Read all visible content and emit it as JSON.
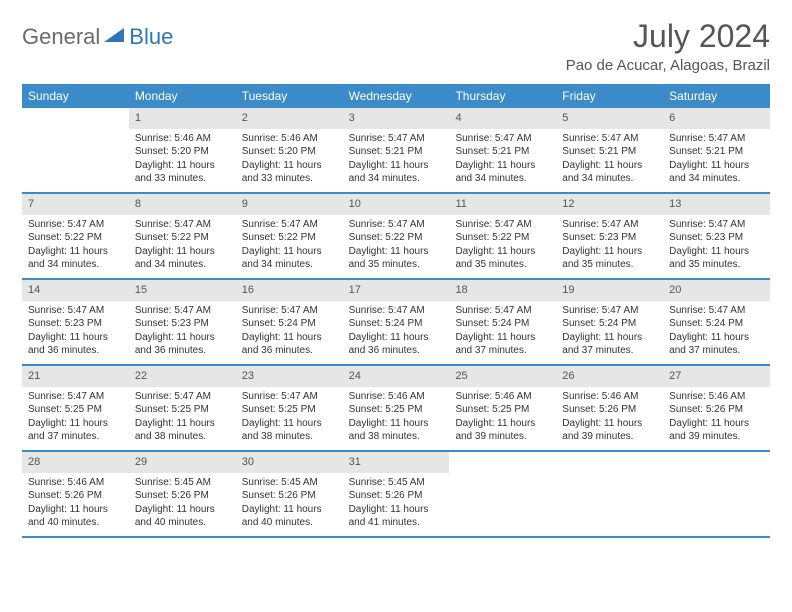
{
  "logo": {
    "text1": "General",
    "text2": "Blue"
  },
  "title": "July 2024",
  "location": "Pao de Acucar, Alagoas, Brazil",
  "colors": {
    "header_bg": "#3b8bc8",
    "header_text": "#ffffff",
    "daynum_bg": "#e6e6e6",
    "text": "#333333",
    "title_color": "#555555",
    "logo_general": "#6b6b6b",
    "logo_blue": "#2d77b5"
  },
  "days_of_week": [
    "Sunday",
    "Monday",
    "Tuesday",
    "Wednesday",
    "Thursday",
    "Friday",
    "Saturday"
  ],
  "weeks": [
    [
      null,
      {
        "n": "1",
        "sr": "Sunrise: 5:46 AM",
        "ss": "Sunset: 5:20 PM",
        "dl": "Daylight: 11 hours and 33 minutes."
      },
      {
        "n": "2",
        "sr": "Sunrise: 5:46 AM",
        "ss": "Sunset: 5:20 PM",
        "dl": "Daylight: 11 hours and 33 minutes."
      },
      {
        "n": "3",
        "sr": "Sunrise: 5:47 AM",
        "ss": "Sunset: 5:21 PM",
        "dl": "Daylight: 11 hours and 34 minutes."
      },
      {
        "n": "4",
        "sr": "Sunrise: 5:47 AM",
        "ss": "Sunset: 5:21 PM",
        "dl": "Daylight: 11 hours and 34 minutes."
      },
      {
        "n": "5",
        "sr": "Sunrise: 5:47 AM",
        "ss": "Sunset: 5:21 PM",
        "dl": "Daylight: 11 hours and 34 minutes."
      },
      {
        "n": "6",
        "sr": "Sunrise: 5:47 AM",
        "ss": "Sunset: 5:21 PM",
        "dl": "Daylight: 11 hours and 34 minutes."
      }
    ],
    [
      {
        "n": "7",
        "sr": "Sunrise: 5:47 AM",
        "ss": "Sunset: 5:22 PM",
        "dl": "Daylight: 11 hours and 34 minutes."
      },
      {
        "n": "8",
        "sr": "Sunrise: 5:47 AM",
        "ss": "Sunset: 5:22 PM",
        "dl": "Daylight: 11 hours and 34 minutes."
      },
      {
        "n": "9",
        "sr": "Sunrise: 5:47 AM",
        "ss": "Sunset: 5:22 PM",
        "dl": "Daylight: 11 hours and 34 minutes."
      },
      {
        "n": "10",
        "sr": "Sunrise: 5:47 AM",
        "ss": "Sunset: 5:22 PM",
        "dl": "Daylight: 11 hours and 35 minutes."
      },
      {
        "n": "11",
        "sr": "Sunrise: 5:47 AM",
        "ss": "Sunset: 5:22 PM",
        "dl": "Daylight: 11 hours and 35 minutes."
      },
      {
        "n": "12",
        "sr": "Sunrise: 5:47 AM",
        "ss": "Sunset: 5:23 PM",
        "dl": "Daylight: 11 hours and 35 minutes."
      },
      {
        "n": "13",
        "sr": "Sunrise: 5:47 AM",
        "ss": "Sunset: 5:23 PM",
        "dl": "Daylight: 11 hours and 35 minutes."
      }
    ],
    [
      {
        "n": "14",
        "sr": "Sunrise: 5:47 AM",
        "ss": "Sunset: 5:23 PM",
        "dl": "Daylight: 11 hours and 36 minutes."
      },
      {
        "n": "15",
        "sr": "Sunrise: 5:47 AM",
        "ss": "Sunset: 5:23 PM",
        "dl": "Daylight: 11 hours and 36 minutes."
      },
      {
        "n": "16",
        "sr": "Sunrise: 5:47 AM",
        "ss": "Sunset: 5:24 PM",
        "dl": "Daylight: 11 hours and 36 minutes."
      },
      {
        "n": "17",
        "sr": "Sunrise: 5:47 AM",
        "ss": "Sunset: 5:24 PM",
        "dl": "Daylight: 11 hours and 36 minutes."
      },
      {
        "n": "18",
        "sr": "Sunrise: 5:47 AM",
        "ss": "Sunset: 5:24 PM",
        "dl": "Daylight: 11 hours and 37 minutes."
      },
      {
        "n": "19",
        "sr": "Sunrise: 5:47 AM",
        "ss": "Sunset: 5:24 PM",
        "dl": "Daylight: 11 hours and 37 minutes."
      },
      {
        "n": "20",
        "sr": "Sunrise: 5:47 AM",
        "ss": "Sunset: 5:24 PM",
        "dl": "Daylight: 11 hours and 37 minutes."
      }
    ],
    [
      {
        "n": "21",
        "sr": "Sunrise: 5:47 AM",
        "ss": "Sunset: 5:25 PM",
        "dl": "Daylight: 11 hours and 37 minutes."
      },
      {
        "n": "22",
        "sr": "Sunrise: 5:47 AM",
        "ss": "Sunset: 5:25 PM",
        "dl": "Daylight: 11 hours and 38 minutes."
      },
      {
        "n": "23",
        "sr": "Sunrise: 5:47 AM",
        "ss": "Sunset: 5:25 PM",
        "dl": "Daylight: 11 hours and 38 minutes."
      },
      {
        "n": "24",
        "sr": "Sunrise: 5:46 AM",
        "ss": "Sunset: 5:25 PM",
        "dl": "Daylight: 11 hours and 38 minutes."
      },
      {
        "n": "25",
        "sr": "Sunrise: 5:46 AM",
        "ss": "Sunset: 5:25 PM",
        "dl": "Daylight: 11 hours and 39 minutes."
      },
      {
        "n": "26",
        "sr": "Sunrise: 5:46 AM",
        "ss": "Sunset: 5:26 PM",
        "dl": "Daylight: 11 hours and 39 minutes."
      },
      {
        "n": "27",
        "sr": "Sunrise: 5:46 AM",
        "ss": "Sunset: 5:26 PM",
        "dl": "Daylight: 11 hours and 39 minutes."
      }
    ],
    [
      {
        "n": "28",
        "sr": "Sunrise: 5:46 AM",
        "ss": "Sunset: 5:26 PM",
        "dl": "Daylight: 11 hours and 40 minutes."
      },
      {
        "n": "29",
        "sr": "Sunrise: 5:45 AM",
        "ss": "Sunset: 5:26 PM",
        "dl": "Daylight: 11 hours and 40 minutes."
      },
      {
        "n": "30",
        "sr": "Sunrise: 5:45 AM",
        "ss": "Sunset: 5:26 PM",
        "dl": "Daylight: 11 hours and 40 minutes."
      },
      {
        "n": "31",
        "sr": "Sunrise: 5:45 AM",
        "ss": "Sunset: 5:26 PM",
        "dl": "Daylight: 11 hours and 41 minutes."
      },
      null,
      null,
      null
    ]
  ]
}
